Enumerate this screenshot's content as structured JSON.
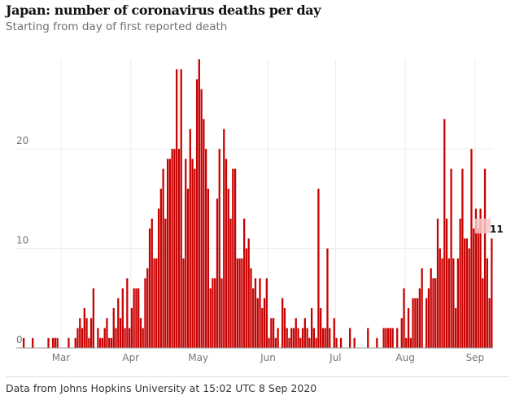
{
  "title": "Japan: number of coronavirus deaths per day",
  "subtitle": "Starting from day of first reported death",
  "footer": "Data from Johns Hopkins University at 15:02 UTC 8 Sep 2020",
  "chart_data": {
    "type": "bar",
    "title": "Japan: number of coronavirus deaths per day",
    "x_start": "2020-02-13",
    "x_end": "2020-09-08",
    "x_ticks": [
      {
        "label": "Mar",
        "date": "2020-03-01"
      },
      {
        "label": "Apr",
        "date": "2020-04-01"
      },
      {
        "label": "May",
        "date": "2020-05-01"
      },
      {
        "label": "Jun",
        "date": "2020-06-01"
      },
      {
        "label": "Jul",
        "date": "2020-07-01"
      },
      {
        "label": "Aug",
        "date": "2020-08-01"
      },
      {
        "label": "Sep",
        "date": "2020-09-01"
      }
    ],
    "y_ticks": [
      "0",
      "10",
      "20"
    ],
    "y_tick_values": [
      0,
      10,
      20
    ],
    "ylim": [
      0,
      29
    ],
    "grid": true,
    "bar_color": "#c70000",
    "highlight_color": "#f4c7c7",
    "last_value_label": "11",
    "highlight_band": [
      11.5,
      13
    ],
    "values": [
      1,
      0,
      0,
      0,
      1,
      0,
      0,
      0,
      0,
      0,
      0,
      1,
      0,
      1,
      1,
      1,
      0,
      0,
      0,
      0,
      1,
      0,
      0,
      1,
      2,
      3,
      2,
      4,
      3,
      1,
      3,
      6,
      0,
      2,
      1,
      1,
      2,
      3,
      1,
      1,
      4,
      2,
      5,
      3,
      6,
      2,
      7,
      2,
      4,
      6,
      6,
      6,
      3,
      2,
      7,
      8,
      12,
      13,
      9,
      9,
      14,
      16,
      18,
      13,
      19,
      19,
      20,
      20,
      28,
      20,
      28,
      9,
      19,
      16,
      22,
      19,
      18,
      27,
      29,
      26,
      23,
      20,
      16,
      6,
      7,
      7,
      15,
      20,
      7,
      22,
      19,
      16,
      13,
      18,
      18,
      9,
      9,
      9,
      13,
      10,
      11,
      8,
      6,
      7,
      5,
      7,
      4,
      5,
      7,
      1,
      3,
      3,
      1,
      2,
      0,
      5,
      4,
      2,
      1,
      2,
      2,
      3,
      2,
      1,
      2,
      3,
      2,
      1,
      4,
      2,
      1,
      16,
      4,
      2,
      2,
      10,
      2,
      0,
      3,
      1,
      0,
      1,
      0,
      0,
      0,
      2,
      0,
      1,
      0,
      0,
      0,
      0,
      0,
      2,
      0,
      0,
      0,
      1,
      0,
      0,
      2,
      2,
      2,
      2,
      2,
      0,
      2,
      0,
      3,
      6,
      1,
      4,
      1,
      5,
      5,
      5,
      6,
      8,
      0,
      5,
      6,
      8,
      7,
      7,
      13,
      10,
      9,
      23,
      13,
      9,
      18,
      9,
      4,
      9,
      13,
      18,
      11,
      11,
      10,
      20,
      12,
      14,
      12,
      14,
      7,
      18,
      9,
      5,
      11
    ]
  }
}
